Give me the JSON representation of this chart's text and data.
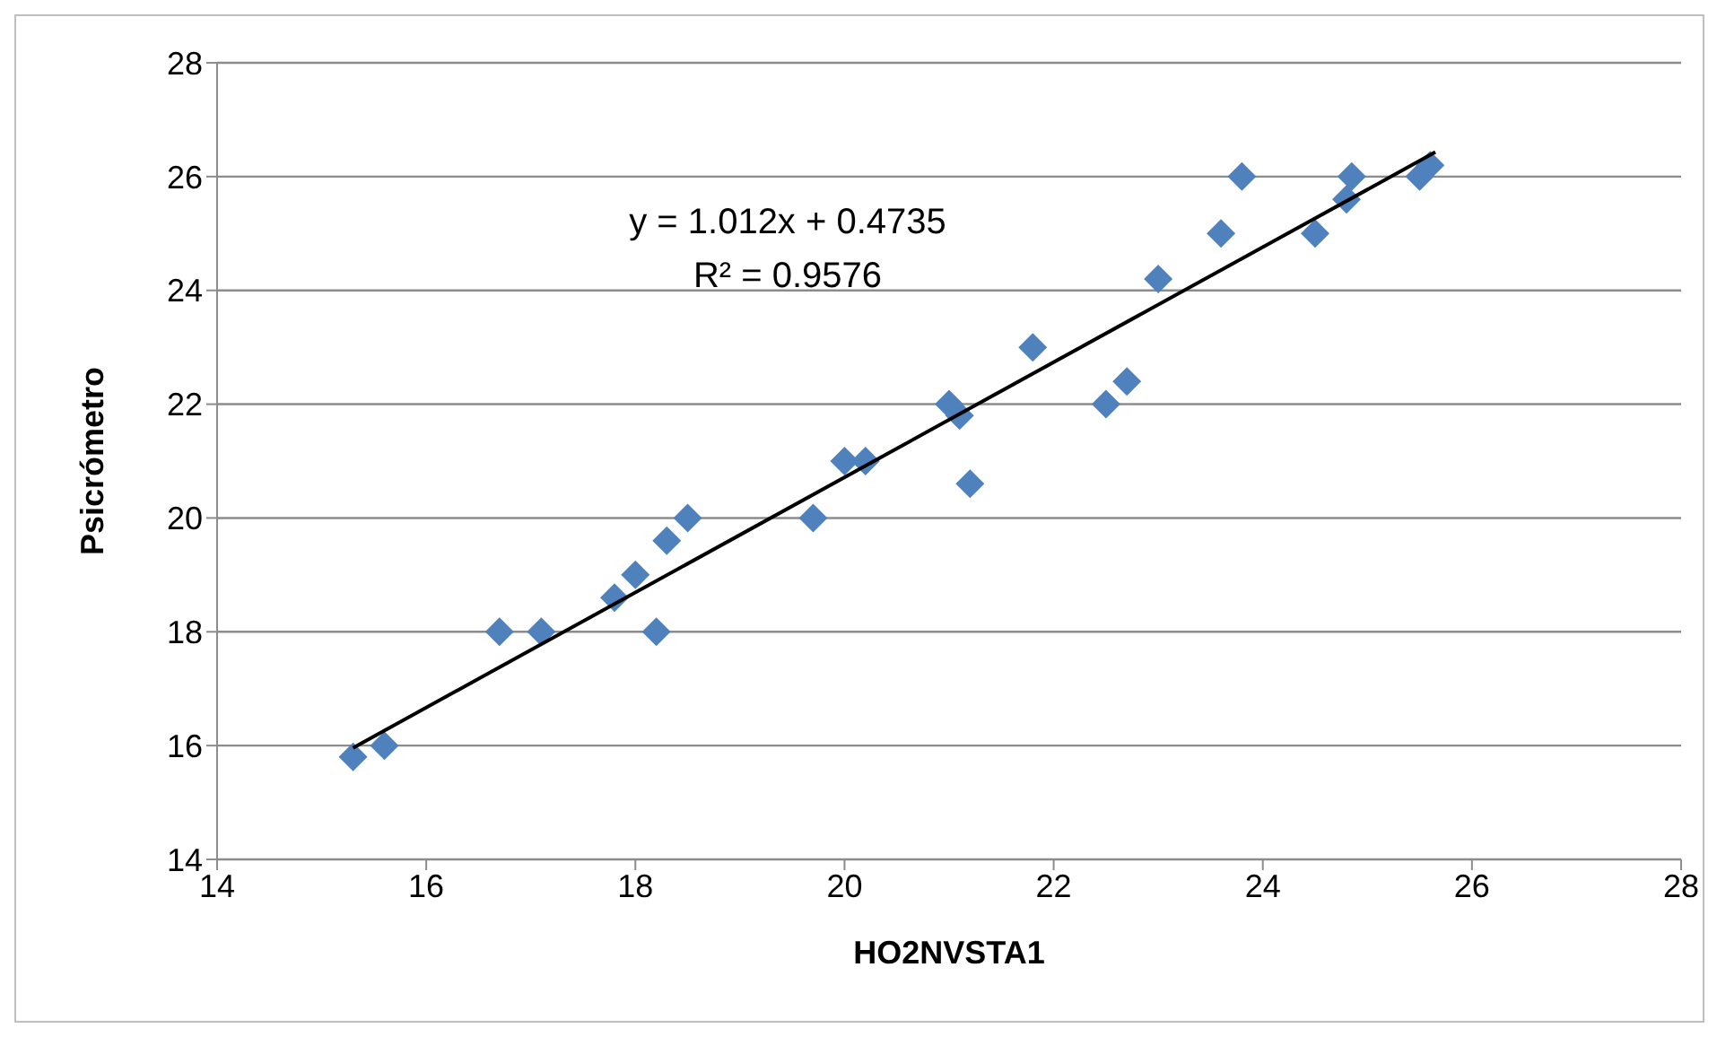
{
  "chart_data": {
    "type": "scatter",
    "xlabel": "HO2NVSTA1",
    "ylabel": "Psicrómetro",
    "xlim": [
      14,
      28
    ],
    "xticks": [
      14,
      16,
      18,
      20,
      22,
      24,
      26,
      28
    ],
    "ylim": [
      14,
      28
    ],
    "yticks": [
      14,
      16,
      18,
      20,
      22,
      24,
      26,
      28
    ],
    "grid": "y",
    "annotations": [
      "y = 1.012x + 0.4735",
      "R² = 0.9576"
    ],
    "series": [
      {
        "color": "#4f81bd",
        "marker": "diamond",
        "x": [
          15.3,
          15.6,
          16.7,
          17.1,
          17.8,
          18.0,
          18.2,
          18.3,
          18.5,
          19.7,
          20.0,
          20.2,
          21.0,
          21.1,
          21.2,
          21.8,
          22.5,
          22.7,
          23.0,
          23.6,
          23.8,
          24.5,
          24.8,
          24.85,
          25.5,
          25.6
        ],
        "values": [
          15.8,
          16.0,
          18.0,
          18.0,
          18.6,
          19.0,
          18.0,
          19.6,
          20.0,
          20.0,
          21.0,
          21.0,
          22.0,
          21.8,
          20.6,
          23.0,
          22.0,
          22.4,
          24.2,
          25.0,
          26.0,
          25.0,
          25.6,
          26.0,
          26.0,
          26.2
        ]
      },
      {
        "type": "line",
        "color": "#000000",
        "marker": "none",
        "line_style": "solid",
        "x": [
          15.3,
          25.65
        ],
        "values": [
          15.96,
          26.43
        ]
      }
    ]
  }
}
